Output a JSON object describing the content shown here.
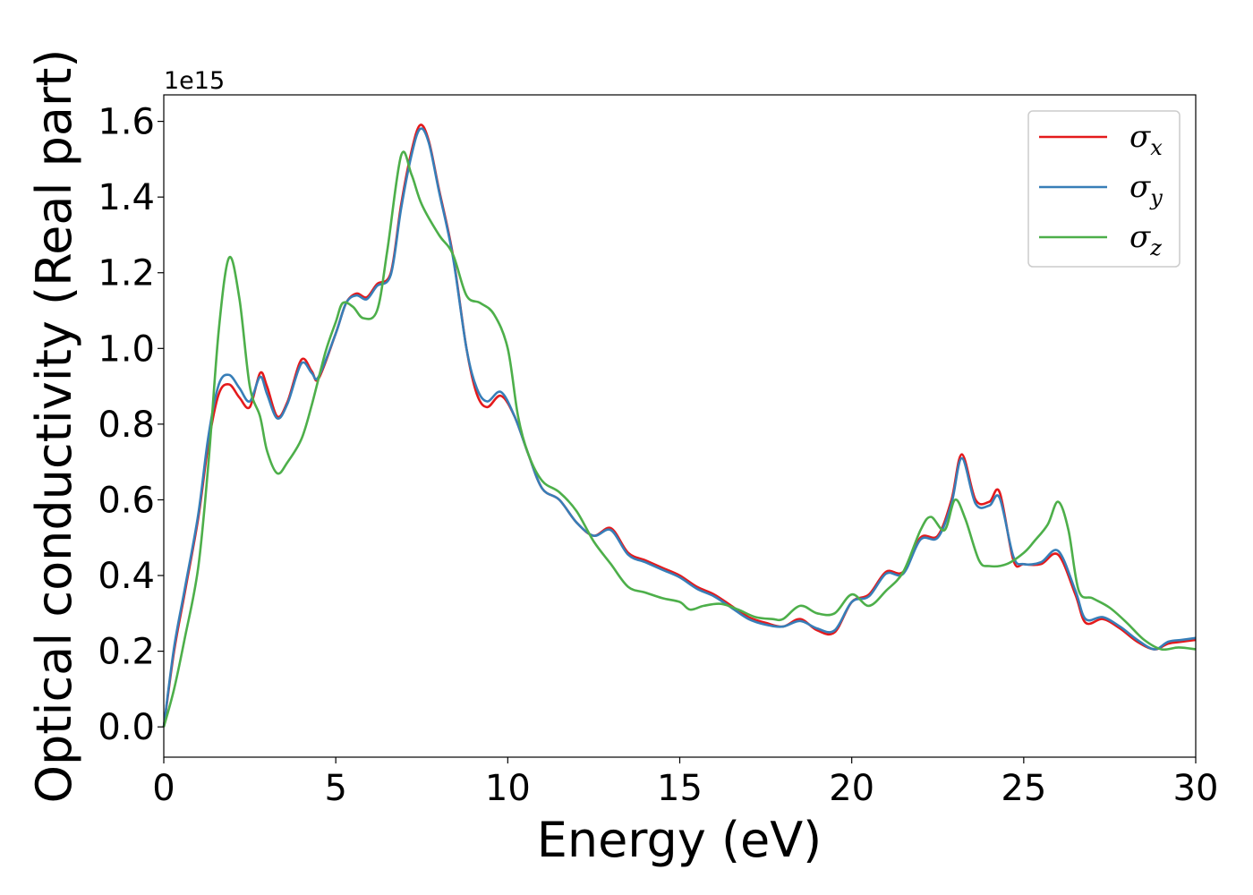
{
  "chart_data": {
    "type": "line",
    "xlabel": "Energy (eV)",
    "ylabel": "Optical conductivity (Real part)",
    "y_offset_label": "1e15",
    "xlim": [
      0,
      30
    ],
    "ylim": [
      -0.08,
      1.67
    ],
    "x_ticks": [
      0,
      5,
      10,
      15,
      20,
      25,
      30
    ],
    "x_tick_labels": [
      "0",
      "5",
      "10",
      "15",
      "20",
      "25",
      "30"
    ],
    "y_ticks": [
      0.0,
      0.2,
      0.4,
      0.6,
      0.8,
      1.0,
      1.2,
      1.4,
      1.6
    ],
    "y_tick_labels": [
      "0.0",
      "0.2",
      "0.4",
      "0.6",
      "0.8",
      "1.0",
      "1.2",
      "1.4",
      "1.6"
    ],
    "grid": false,
    "legend_position": "top-right",
    "series": [
      {
        "name": "σx",
        "symbol": "σ",
        "subscript": "x",
        "color": "#e41a1c",
        "points": [
          [
            0,
            0.0
          ],
          [
            0.3,
            0.2
          ],
          [
            0.6,
            0.35
          ],
          [
            1.0,
            0.55
          ],
          [
            1.3,
            0.75
          ],
          [
            1.6,
            0.88
          ],
          [
            1.9,
            0.905
          ],
          [
            2.2,
            0.87
          ],
          [
            2.5,
            0.845
          ],
          [
            2.8,
            0.935
          ],
          [
            3.0,
            0.9
          ],
          [
            3.3,
            0.82
          ],
          [
            3.6,
            0.86
          ],
          [
            4.0,
            0.97
          ],
          [
            4.3,
            0.94
          ],
          [
            4.5,
            0.92
          ],
          [
            5.0,
            1.04
          ],
          [
            5.3,
            1.12
          ],
          [
            5.6,
            1.145
          ],
          [
            5.9,
            1.135
          ],
          [
            6.2,
            1.17
          ],
          [
            6.6,
            1.2
          ],
          [
            6.9,
            1.38
          ],
          [
            7.2,
            1.52
          ],
          [
            7.45,
            1.59
          ],
          [
            7.7,
            1.55
          ],
          [
            8.0,
            1.42
          ],
          [
            8.4,
            1.25
          ],
          [
            8.8,
            1.0
          ],
          [
            9.1,
            0.88
          ],
          [
            9.4,
            0.845
          ],
          [
            9.8,
            0.875
          ],
          [
            10.2,
            0.82
          ],
          [
            10.6,
            0.72
          ],
          [
            11.0,
            0.63
          ],
          [
            11.5,
            0.6
          ],
          [
            12.0,
            0.54
          ],
          [
            12.5,
            0.505
          ],
          [
            13.0,
            0.525
          ],
          [
            13.5,
            0.46
          ],
          [
            14.0,
            0.44
          ],
          [
            14.5,
            0.42
          ],
          [
            15.0,
            0.4
          ],
          [
            15.5,
            0.37
          ],
          [
            16.0,
            0.35
          ],
          [
            16.5,
            0.32
          ],
          [
            17.0,
            0.29
          ],
          [
            17.5,
            0.275
          ],
          [
            18.0,
            0.265
          ],
          [
            18.5,
            0.285
          ],
          [
            19.0,
            0.255
          ],
          [
            19.5,
            0.25
          ],
          [
            20.0,
            0.33
          ],
          [
            20.5,
            0.35
          ],
          [
            21.0,
            0.41
          ],
          [
            21.5,
            0.41
          ],
          [
            22.0,
            0.5
          ],
          [
            22.5,
            0.505
          ],
          [
            22.9,
            0.6
          ],
          [
            23.2,
            0.72
          ],
          [
            23.6,
            0.6
          ],
          [
            24.0,
            0.595
          ],
          [
            24.3,
            0.62
          ],
          [
            24.7,
            0.44
          ],
          [
            25.0,
            0.43
          ],
          [
            25.5,
            0.43
          ],
          [
            26.0,
            0.455
          ],
          [
            26.5,
            0.35
          ],
          [
            26.8,
            0.275
          ],
          [
            27.3,
            0.285
          ],
          [
            27.8,
            0.26
          ],
          [
            28.3,
            0.225
          ],
          [
            28.8,
            0.205
          ],
          [
            29.2,
            0.22
          ],
          [
            29.6,
            0.225
          ],
          [
            30.0,
            0.23
          ]
        ]
      },
      {
        "name": "σy",
        "symbol": "σ",
        "subscript": "y",
        "color": "#377eb8",
        "points": [
          [
            0,
            0.0
          ],
          [
            0.3,
            0.21
          ],
          [
            0.6,
            0.36
          ],
          [
            1.0,
            0.56
          ],
          [
            1.3,
            0.77
          ],
          [
            1.6,
            0.905
          ],
          [
            1.9,
            0.93
          ],
          [
            2.2,
            0.895
          ],
          [
            2.5,
            0.86
          ],
          [
            2.8,
            0.925
          ],
          [
            3.0,
            0.88
          ],
          [
            3.3,
            0.815
          ],
          [
            3.6,
            0.855
          ],
          [
            4.0,
            0.96
          ],
          [
            4.3,
            0.935
          ],
          [
            4.5,
            0.925
          ],
          [
            5.0,
            1.04
          ],
          [
            5.3,
            1.12
          ],
          [
            5.6,
            1.14
          ],
          [
            5.9,
            1.13
          ],
          [
            6.2,
            1.165
          ],
          [
            6.6,
            1.195
          ],
          [
            6.9,
            1.37
          ],
          [
            7.2,
            1.51
          ],
          [
            7.45,
            1.58
          ],
          [
            7.7,
            1.545
          ],
          [
            8.0,
            1.415
          ],
          [
            8.4,
            1.245
          ],
          [
            8.8,
            1.0
          ],
          [
            9.1,
            0.895
          ],
          [
            9.4,
            0.86
          ],
          [
            9.8,
            0.885
          ],
          [
            10.2,
            0.82
          ],
          [
            10.6,
            0.72
          ],
          [
            11.0,
            0.63
          ],
          [
            11.5,
            0.6
          ],
          [
            12.0,
            0.54
          ],
          [
            12.5,
            0.505
          ],
          [
            13.0,
            0.52
          ],
          [
            13.5,
            0.455
          ],
          [
            14.0,
            0.435
          ],
          [
            14.5,
            0.415
          ],
          [
            15.0,
            0.395
          ],
          [
            15.5,
            0.365
          ],
          [
            16.0,
            0.345
          ],
          [
            16.5,
            0.315
          ],
          [
            17.0,
            0.285
          ],
          [
            17.5,
            0.27
          ],
          [
            18.0,
            0.265
          ],
          [
            18.5,
            0.28
          ],
          [
            19.0,
            0.26
          ],
          [
            19.5,
            0.255
          ],
          [
            20.0,
            0.33
          ],
          [
            20.5,
            0.345
          ],
          [
            21.0,
            0.405
          ],
          [
            21.5,
            0.405
          ],
          [
            22.0,
            0.495
          ],
          [
            22.5,
            0.5
          ],
          [
            22.9,
            0.59
          ],
          [
            23.2,
            0.71
          ],
          [
            23.6,
            0.59
          ],
          [
            24.0,
            0.585
          ],
          [
            24.3,
            0.605
          ],
          [
            24.7,
            0.45
          ],
          [
            25.0,
            0.43
          ],
          [
            25.5,
            0.435
          ],
          [
            26.0,
            0.465
          ],
          [
            26.5,
            0.36
          ],
          [
            26.8,
            0.285
          ],
          [
            27.3,
            0.29
          ],
          [
            27.8,
            0.265
          ],
          [
            28.3,
            0.23
          ],
          [
            28.8,
            0.205
          ],
          [
            29.2,
            0.225
          ],
          [
            29.6,
            0.23
          ],
          [
            30.0,
            0.235
          ]
        ]
      },
      {
        "name": "σz",
        "symbol": "σ",
        "subscript": "z",
        "color": "#4daf4a",
        "points": [
          [
            0,
            0.0
          ],
          [
            0.3,
            0.1
          ],
          [
            0.6,
            0.23
          ],
          [
            1.0,
            0.42
          ],
          [
            1.3,
            0.7
          ],
          [
            1.6,
            1.05
          ],
          [
            1.9,
            1.24
          ],
          [
            2.2,
            1.13
          ],
          [
            2.5,
            0.9
          ],
          [
            2.8,
            0.82
          ],
          [
            3.0,
            0.73
          ],
          [
            3.3,
            0.67
          ],
          [
            3.6,
            0.7
          ],
          [
            4.0,
            0.76
          ],
          [
            4.3,
            0.85
          ],
          [
            4.7,
            0.99
          ],
          [
            5.0,
            1.07
          ],
          [
            5.2,
            1.12
          ],
          [
            5.5,
            1.11
          ],
          [
            5.8,
            1.08
          ],
          [
            6.2,
            1.1
          ],
          [
            6.5,
            1.26
          ],
          [
            6.9,
            1.51
          ],
          [
            7.2,
            1.46
          ],
          [
            7.5,
            1.38
          ],
          [
            8.0,
            1.3
          ],
          [
            8.4,
            1.25
          ],
          [
            8.8,
            1.14
          ],
          [
            9.2,
            1.12
          ],
          [
            9.6,
            1.09
          ],
          [
            10.0,
            1.0
          ],
          [
            10.3,
            0.82
          ],
          [
            10.6,
            0.72
          ],
          [
            11.0,
            0.65
          ],
          [
            11.5,
            0.62
          ],
          [
            12.0,
            0.57
          ],
          [
            12.5,
            0.49
          ],
          [
            13.0,
            0.43
          ],
          [
            13.5,
            0.37
          ],
          [
            14.0,
            0.355
          ],
          [
            14.5,
            0.34
          ],
          [
            15.0,
            0.33
          ],
          [
            15.3,
            0.31
          ],
          [
            15.7,
            0.32
          ],
          [
            16.2,
            0.325
          ],
          [
            16.7,
            0.31
          ],
          [
            17.2,
            0.29
          ],
          [
            17.7,
            0.285
          ],
          [
            18.0,
            0.285
          ],
          [
            18.5,
            0.32
          ],
          [
            19.0,
            0.3
          ],
          [
            19.5,
            0.3
          ],
          [
            20.0,
            0.35
          ],
          [
            20.5,
            0.32
          ],
          [
            21.0,
            0.36
          ],
          [
            21.5,
            0.41
          ],
          [
            22.0,
            0.52
          ],
          [
            22.3,
            0.555
          ],
          [
            22.7,
            0.52
          ],
          [
            23.0,
            0.6
          ],
          [
            23.3,
            0.55
          ],
          [
            23.7,
            0.44
          ],
          [
            24.0,
            0.425
          ],
          [
            24.5,
            0.43
          ],
          [
            25.0,
            0.46
          ],
          [
            25.3,
            0.49
          ],
          [
            25.7,
            0.535
          ],
          [
            26.0,
            0.595
          ],
          [
            26.3,
            0.52
          ],
          [
            26.6,
            0.36
          ],
          [
            27.0,
            0.34
          ],
          [
            27.5,
            0.315
          ],
          [
            28.0,
            0.275
          ],
          [
            28.5,
            0.23
          ],
          [
            29.0,
            0.205
          ],
          [
            29.5,
            0.21
          ],
          [
            30.0,
            0.205
          ]
        ]
      }
    ]
  }
}
